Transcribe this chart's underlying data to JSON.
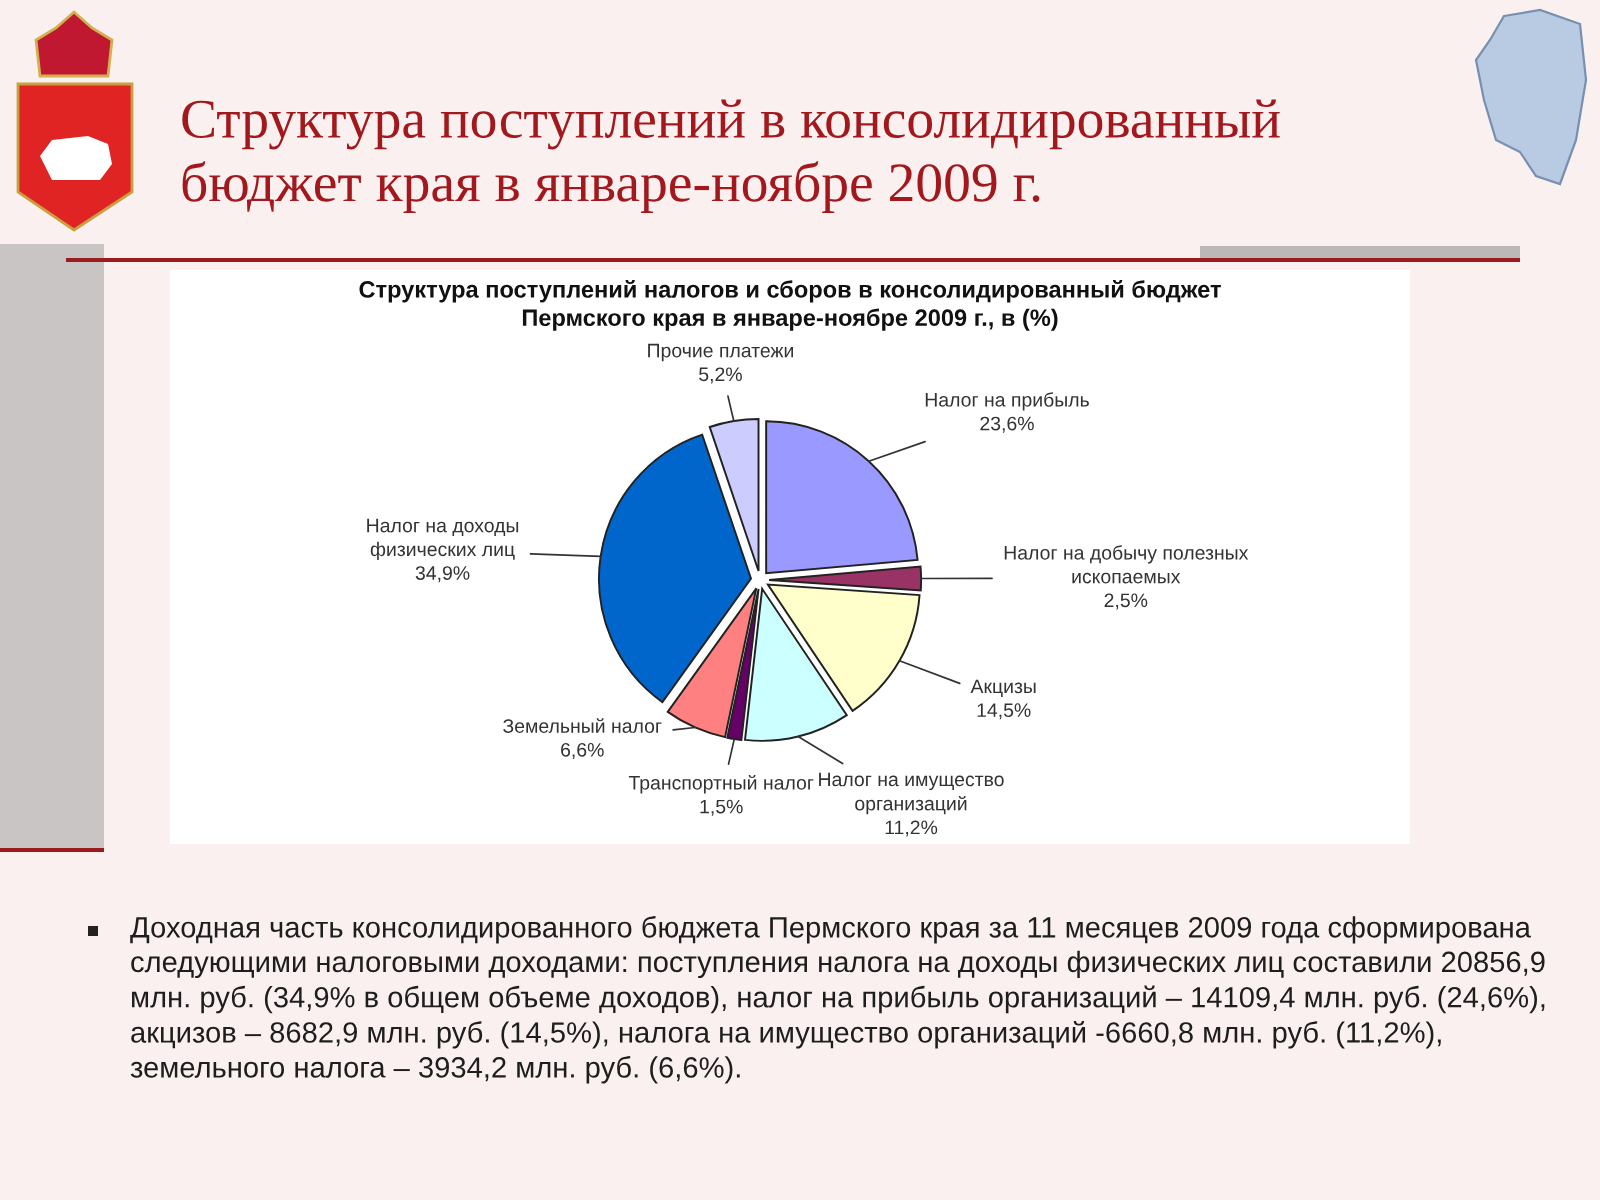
{
  "chart_data": {
    "type": "pie",
    "title": "Структура поступлений в консолидированный\nбюджет края в январе-ноябре 2009 г.",
    "subtitle": "Структура поступлений налогов и сборов в консолидированный бюджет\nПермского края в январе-ноябре 2009 г., в (%)",
    "categories": [
      "Налог на прибыль",
      "Налог на добычу полезных\nископаемых",
      "Акцизы",
      "Налог на имущество\nорганизаций",
      "Транспортный налог",
      "Земельный налог",
      "Налог на доходы\nфизических лиц",
      "Прочие платежи"
    ],
    "values": [
      23.6,
      2.5,
      14.5,
      11.2,
      1.5,
      6.6,
      34.9,
      5.2
    ],
    "colors": [
      "#9999ff",
      "#993366",
      "#ffffcc",
      "#ccffff",
      "#660066",
      "#ff8080",
      "#0066cc",
      "#ccccff"
    ],
    "value_labels": [
      "23,6%",
      "2,5%",
      "14,5%",
      "11,2%",
      "1,5%",
      "6,6%",
      "34,9%",
      "5,2%"
    ],
    "annotations": [
      "Доходная часть консолидированного бюджета Пермского края за 11 месяцев 2009 года сформирована следующими налоговыми доходами: поступления налога на доходы физических лиц составили 20856,9 млн. руб. (34,9% в общем объеме доходов), налог на прибыль организаций – 14109,4 млн. руб. (24,6%), акцизов – 8682,9 млн. руб. (14,5%), налога на имущество организаций -6660,8 млн. руб. (11,2%), земельного налога – 3934,2 млн. руб. (6,6%)."
    ]
  }
}
